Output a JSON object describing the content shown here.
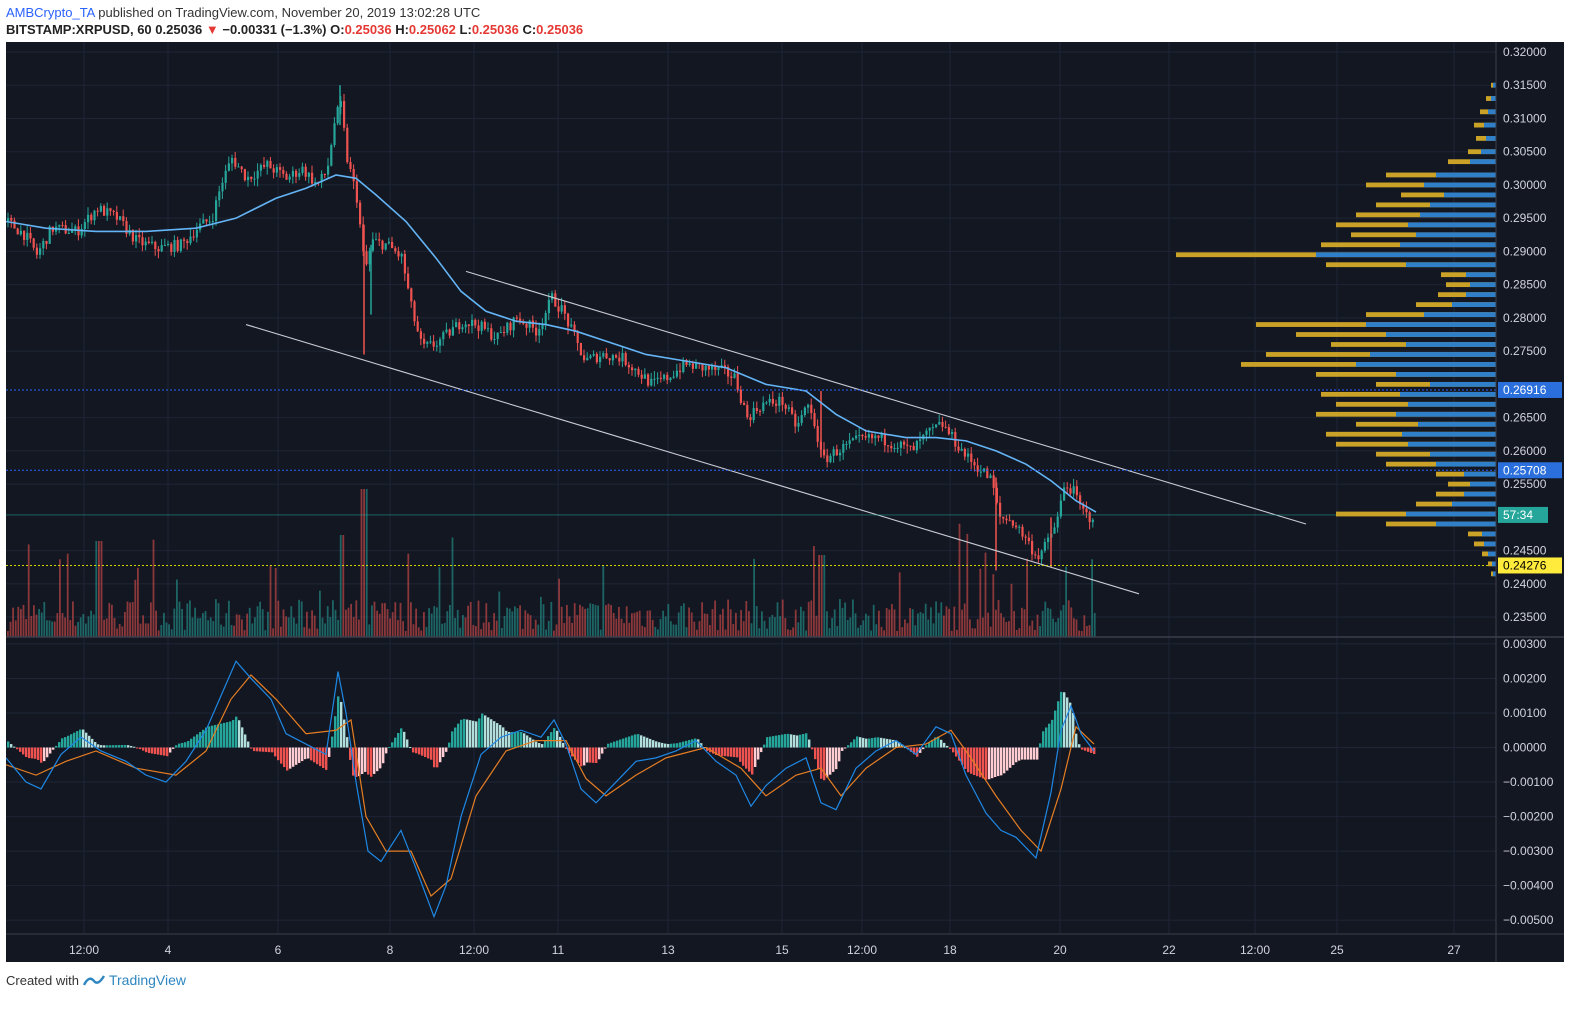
{
  "header": {
    "author": "AMBCrypto_TA",
    "published_text": "published on TradingView.com, November 20, 2019 13:02:28 UTC",
    "symbol": "BITSTAMP:XRPUSD, 60",
    "last": "0.25036",
    "change": "−0.00331 (−1.3%)",
    "o_label": "O:",
    "o": "0.25036",
    "h_label": "H:",
    "h": "0.25062",
    "l_label": "L:",
    "l": "0.25036",
    "c_label": "C:",
    "c": "0.25036"
  },
  "footer": {
    "created_with": "Created with",
    "brand": "TradingView"
  },
  "colors": {
    "background": "#131722",
    "grid": "#1f2536",
    "up": "#26a69a",
    "down": "#ef5350",
    "ma": "#64b5f6",
    "vp_up": "#2f7fc9",
    "vp_down": "#c9a227",
    "macd": "#1e88e5",
    "signal": "#e67e22"
  },
  "chart_data": [
    {
      "type": "candlestick",
      "y_ticks": [
        "0.32000",
        "0.31500",
        "0.31000",
        "0.30500",
        "0.30000",
        "0.29500",
        "0.29000",
        "0.28500",
        "0.28000",
        "0.27500",
        "0.26500",
        "0.26000",
        "0.25500",
        "0.24500",
        "0.24000",
        "0.23500"
      ],
      "ylim": [
        0.232,
        0.3215
      ],
      "x_ticks": [
        "12:00",
        "4",
        "6",
        "8",
        "12:00",
        "11",
        "13",
        "15",
        "12:00",
        "18",
        "20",
        "22",
        "12:00",
        "25",
        "27"
      ],
      "price_series": [
        [
          0,
          0.2945
        ],
        [
          18,
          0.2925
        ],
        [
          30,
          0.2895
        ],
        [
          45,
          0.2935
        ],
        [
          70,
          0.293
        ],
        [
          90,
          0.2965
        ],
        [
          110,
          0.295
        ],
        [
          130,
          0.2915
        ],
        [
          150,
          0.2905
        ],
        [
          175,
          0.291
        ],
        [
          190,
          0.2935
        ],
        [
          205,
          0.295
        ],
        [
          215,
          0.3005
        ],
        [
          225,
          0.304
        ],
        [
          240,
          0.301
        ],
        [
          260,
          0.303
        ],
        [
          280,
          0.301
        ],
        [
          295,
          0.3025
        ],
        [
          310,
          0.3
        ],
        [
          320,
          0.302
        ],
        [
          328,
          0.31
        ],
        [
          334,
          0.312
        ],
        [
          340,
          0.304
        ],
        [
          350,
          0.298
        ],
        [
          358,
          0.287
        ],
        [
          365,
          0.2915
        ],
        [
          380,
          0.291
        ],
        [
          395,
          0.289
        ],
        [
          405,
          0.281
        ],
        [
          415,
          0.2755
        ],
        [
          428,
          0.276
        ],
        [
          440,
          0.2775
        ],
        [
          455,
          0.2795
        ],
        [
          470,
          0.279
        ],
        [
          490,
          0.277
        ],
        [
          510,
          0.28
        ],
        [
          530,
          0.278
        ],
        [
          545,
          0.283
        ],
        [
          556,
          0.281
        ],
        [
          566,
          0.2775
        ],
        [
          578,
          0.2735
        ],
        [
          595,
          0.2745
        ],
        [
          615,
          0.274
        ],
        [
          630,
          0.272
        ],
        [
          645,
          0.27
        ],
        [
          660,
          0.271
        ],
        [
          678,
          0.273
        ],
        [
          695,
          0.2725
        ],
        [
          715,
          0.272
        ],
        [
          728,
          0.271
        ],
        [
          740,
          0.265
        ],
        [
          755,
          0.267
        ],
        [
          775,
          0.2675
        ],
        [
          790,
          0.2635
        ],
        [
          800,
          0.267
        ],
        [
          808,
          0.264
        ],
        [
          815,
          0.2585
        ],
        [
          830,
          0.26
        ],
        [
          850,
          0.2615
        ],
        [
          870,
          0.262
        ],
        [
          890,
          0.261
        ],
        [
          905,
          0.26
        ],
        [
          920,
          0.2625
        ],
        [
          935,
          0.264
        ],
        [
          945,
          0.262
        ],
        [
          960,
          0.259
        ],
        [
          975,
          0.257
        ],
        [
          985,
          0.2555
        ],
        [
          992,
          0.25
        ],
        [
          1005,
          0.2495
        ],
        [
          1018,
          0.247
        ],
        [
          1030,
          0.244
        ],
        [
          1040,
          0.246
        ],
        [
          1050,
          0.2495
        ],
        [
          1058,
          0.255
        ],
        [
          1066,
          0.254
        ],
        [
          1075,
          0.251
        ],
        [
          1082,
          0.25
        ],
        [
          1088,
          0.2504
        ]
      ],
      "ma_series": [
        [
          0,
          0.2945
        ],
        [
          40,
          0.2935
        ],
        [
          90,
          0.293
        ],
        [
          140,
          0.293
        ],
        [
          190,
          0.2935
        ],
        [
          230,
          0.295
        ],
        [
          270,
          0.298
        ],
        [
          300,
          0.2995
        ],
        [
          330,
          0.3015
        ],
        [
          350,
          0.301
        ],
        [
          370,
          0.2985
        ],
        [
          400,
          0.2945
        ],
        [
          430,
          0.289
        ],
        [
          455,
          0.284
        ],
        [
          480,
          0.281
        ],
        [
          510,
          0.2795
        ],
        [
          540,
          0.279
        ],
        [
          570,
          0.278
        ],
        [
          600,
          0.2765
        ],
        [
          640,
          0.2745
        ],
        [
          680,
          0.2735
        ],
        [
          720,
          0.2725
        ],
        [
          760,
          0.27
        ],
        [
          800,
          0.269
        ],
        [
          830,
          0.2655
        ],
        [
          860,
          0.263
        ],
        [
          900,
          0.262
        ],
        [
          930,
          0.262
        ],
        [
          960,
          0.2615
        ],
        [
          990,
          0.26
        ],
        [
          1020,
          0.258
        ],
        [
          1045,
          0.2555
        ],
        [
          1070,
          0.2525
        ],
        [
          1090,
          0.2508
        ]
      ],
      "trendlines": [
        {
          "x1": 460,
          "y1": 0.287,
          "x2": 1300,
          "y2": 0.249
        },
        {
          "x1": 240,
          "y1": 0.279,
          "x2": 1133,
          "y2": 0.2385
        }
      ],
      "hlines": [
        {
          "value": 0.26916,
          "label": "0.26916",
          "color": "#2962ff",
          "tag_bg": "#2a6fdb"
        },
        {
          "value": 0.25708,
          "label": "0.25708",
          "color": "#2962ff",
          "tag_bg": "#2a6fdb"
        },
        {
          "value": 0.24276,
          "label": "0.24276",
          "color": "#d4d400",
          "tag_bg": "#ffeb3b"
        }
      ],
      "countdown_tag": "57:34",
      "volume_profile": [
        [
          0.315,
          5,
          3
        ],
        [
          0.313,
          10,
          5
        ],
        [
          0.311,
          16,
          8
        ],
        [
          0.309,
          22,
          12
        ],
        [
          0.307,
          20,
          10
        ],
        [
          0.305,
          28,
          15
        ],
        [
          0.3035,
          48,
          26
        ],
        [
          0.3015,
          110,
          60
        ],
        [
          0.3,
          130,
          72
        ],
        [
          0.2985,
          95,
          52
        ],
        [
          0.297,
          120,
          66
        ],
        [
          0.2955,
          140,
          76
        ],
        [
          0.294,
          160,
          88
        ],
        [
          0.2925,
          145,
          80
        ],
        [
          0.291,
          175,
          96
        ],
        [
          0.2895,
          320,
          180
        ],
        [
          0.288,
          170,
          90
        ],
        [
          0.2865,
          55,
          30
        ],
        [
          0.285,
          50,
          26
        ],
        [
          0.2835,
          58,
          30
        ],
        [
          0.282,
          80,
          44
        ],
        [
          0.2805,
          130,
          72
        ],
        [
          0.279,
          240,
          130
        ],
        [
          0.2775,
          200,
          110
        ],
        [
          0.276,
          165,
          90
        ],
        [
          0.2745,
          230,
          126
        ],
        [
          0.273,
          255,
          140
        ],
        [
          0.2715,
          180,
          100
        ],
        [
          0.27,
          120,
          66
        ],
        [
          0.2685,
          175,
          96
        ],
        [
          0.267,
          160,
          88
        ],
        [
          0.2655,
          180,
          100
        ],
        [
          0.264,
          140,
          78
        ],
        [
          0.2625,
          170,
          94
        ],
        [
          0.261,
          160,
          88
        ],
        [
          0.2595,
          120,
          66
        ],
        [
          0.258,
          110,
          60
        ],
        [
          0.2565,
          60,
          32
        ],
        [
          0.255,
          48,
          26
        ],
        [
          0.2535,
          60,
          32
        ],
        [
          0.252,
          80,
          44
        ],
        [
          0.2505,
          160,
          90
        ],
        [
          0.249,
          110,
          60
        ],
        [
          0.2475,
          28,
          14
        ],
        [
          0.246,
          22,
          12
        ],
        [
          0.2445,
          14,
          8
        ],
        [
          0.243,
          8,
          4
        ],
        [
          0.2415,
          5,
          3
        ]
      ]
    },
    {
      "type": "macd",
      "y_ticks": [
        "0.00300",
        "0.00200",
        "0.00100",
        "0.00000",
        "−0.00100",
        "−0.00200",
        "−0.00300",
        "−0.00400",
        "−0.00500"
      ],
      "ylim": [
        -0.0054,
        0.0032
      ],
      "macd_series": [
        [
          0,
          -0.0003
        ],
        [
          20,
          -0.001
        ],
        [
          35,
          -0.0012
        ],
        [
          55,
          -0.0002
        ],
        [
          75,
          0.0003
        ],
        [
          95,
          -0.0001
        ],
        [
          120,
          -0.0004
        ],
        [
          140,
          -0.0008
        ],
        [
          160,
          -0.001
        ],
        [
          180,
          -0.0004
        ],
        [
          200,
          0.0005
        ],
        [
          215,
          0.0015
        ],
        [
          230,
          0.0025
        ],
        [
          245,
          0.002
        ],
        [
          265,
          0.0014
        ],
        [
          280,
          0.0004
        ],
        [
          300,
          0.0001
        ],
        [
          320,
          -0.0002
        ],
        [
          332,
          0.0022
        ],
        [
          340,
          0.001
        ],
        [
          350,
          -0.001
        ],
        [
          362,
          -0.003
        ],
        [
          375,
          -0.0033
        ],
        [
          395,
          -0.0024
        ],
        [
          410,
          -0.0035
        ],
        [
          428,
          -0.0049
        ],
        [
          440,
          -0.004
        ],
        [
          455,
          -0.002
        ],
        [
          475,
          -0.0002
        ],
        [
          495,
          0.0003
        ],
        [
          515,
          0.0005
        ],
        [
          535,
          0.0003
        ],
        [
          548,
          0.0008
        ],
        [
          560,
          0.0001
        ],
        [
          575,
          -0.0012
        ],
        [
          590,
          -0.0016
        ],
        [
          610,
          -0.001
        ],
        [
          630,
          -0.0004
        ],
        [
          650,
          -0.0003
        ],
        [
          670,
          -0.0001
        ],
        [
          690,
          0.0002
        ],
        [
          710,
          -0.0004
        ],
        [
          730,
          -0.0008
        ],
        [
          745,
          -0.0017
        ],
        [
          760,
          -0.0011
        ],
        [
          780,
          -0.0006
        ],
        [
          800,
          -0.0003
        ],
        [
          815,
          -0.0016
        ],
        [
          830,
          -0.0018
        ],
        [
          850,
          -0.0006
        ],
        [
          870,
          -0.0001
        ],
        [
          890,
          0.0002
        ],
        [
          910,
          -0.0002
        ],
        [
          930,
          0.0006
        ],
        [
          945,
          0.0004
        ],
        [
          960,
          -0.0008
        ],
        [
          980,
          -0.0019
        ],
        [
          995,
          -0.0024
        ],
        [
          1010,
          -0.0026
        ],
        [
          1030,
          -0.0032
        ],
        [
          1045,
          -0.0013
        ],
        [
          1055,
          0.0005
        ],
        [
          1065,
          0.0012
        ],
        [
          1075,
          0.0004
        ],
        [
          1088,
          -0.0001
        ]
      ],
      "signal_series": [
        [
          0,
          -0.0005
        ],
        [
          30,
          -0.0008
        ],
        [
          60,
          -0.0004
        ],
        [
          90,
          -0.0001
        ],
        [
          130,
          -0.0006
        ],
        [
          170,
          -0.0008
        ],
        [
          200,
          -0.0001
        ],
        [
          225,
          0.0014
        ],
        [
          245,
          0.0021
        ],
        [
          270,
          0.0014
        ],
        [
          300,
          0.0004
        ],
        [
          330,
          0.0005
        ],
        [
          345,
          0.0008
        ],
        [
          360,
          -0.002
        ],
        [
          380,
          -0.003
        ],
        [
          405,
          -0.003
        ],
        [
          425,
          -0.0043
        ],
        [
          445,
          -0.0038
        ],
        [
          470,
          -0.0014
        ],
        [
          500,
          -0.0001
        ],
        [
          530,
          0.0002
        ],
        [
          560,
          0.0002
        ],
        [
          580,
          -0.0009
        ],
        [
          600,
          -0.0014
        ],
        [
          630,
          -0.0008
        ],
        [
          660,
          -0.0003
        ],
        [
          700,
          0.0
        ],
        [
          735,
          -0.0006
        ],
        [
          760,
          -0.0014
        ],
        [
          790,
          -0.0008
        ],
        [
          815,
          -0.0006
        ],
        [
          835,
          -0.0014
        ],
        [
          860,
          -0.0006
        ],
        [
          890,
          0.0
        ],
        [
          920,
          0.0001
        ],
        [
          945,
          0.0005
        ],
        [
          965,
          -0.0003
        ],
        [
          990,
          -0.0014
        ],
        [
          1015,
          -0.0024
        ],
        [
          1035,
          -0.003
        ],
        [
          1055,
          -0.0012
        ],
        [
          1070,
          0.0006
        ],
        [
          1088,
          0.0001
        ]
      ]
    }
  ]
}
